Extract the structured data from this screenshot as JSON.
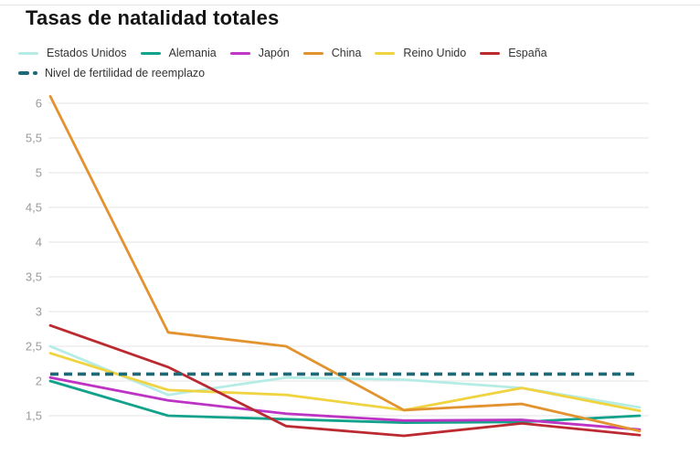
{
  "title": "Tasas de natalidad totales",
  "colors": {
    "background": "#ffffff",
    "grid": "#eaeaea",
    "tick_label": "#9b9b9b",
    "title_text": "#141414",
    "legend_text": "#333333"
  },
  "legend": {
    "series": [
      {
        "label": "Estados Unidos",
        "color": "#b5ece6"
      },
      {
        "label": "Alemania",
        "color": "#12a28b"
      },
      {
        "label": "Japón",
        "color": "#c136c9"
      },
      {
        "label": "China",
        "color": "#e2932f"
      },
      {
        "label": "Reino Unido",
        "color": "#efd341"
      },
      {
        "label": "España",
        "color": "#bb2a31"
      }
    ],
    "reference": {
      "label": "Nivel de fertilidad de reemplazo",
      "color": "#1d6a76",
      "style": "dashed"
    }
  },
  "chart_data": {
    "type": "line",
    "title": "Tasas de natalidad totales",
    "x": [
      1,
      2,
      3,
      4,
      5,
      6
    ],
    "x_tick_labels_visible": false,
    "y_ticks": [
      "6",
      "5,5",
      "5",
      "4,5",
      "4",
      "3,5",
      "3",
      "2,5",
      "2",
      "1,5"
    ],
    "y_tick_values": [
      6,
      5.5,
      5,
      4.5,
      4,
      3.5,
      3,
      2.5,
      2,
      1.5
    ],
    "ylim_visible": [
      0.95,
      6.35
    ],
    "grid": "horizontal",
    "legend_position": "top",
    "series": [
      {
        "name": "Estados Unidos",
        "color": "#b5ece6",
        "values": [
          2.5,
          1.8,
          2.05,
          2.02,
          1.9,
          1.62
        ]
      },
      {
        "name": "Reino Unido",
        "color": "#efd341",
        "values": [
          2.4,
          1.87,
          1.8,
          1.58,
          1.9,
          1.57
        ]
      },
      {
        "name": "Alemania",
        "color": "#12a28b",
        "values": [
          2.0,
          1.5,
          1.45,
          1.4,
          1.41,
          1.5
        ]
      },
      {
        "name": "Japón",
        "color": "#bd34c4",
        "values": [
          2.05,
          1.72,
          1.53,
          1.43,
          1.44,
          1.3
        ]
      },
      {
        "name": "China",
        "color": "#e2932f",
        "values": [
          6.1,
          2.7,
          2.5,
          1.58,
          1.67,
          1.28
        ]
      },
      {
        "name": "España",
        "color": "#bb2a31",
        "values": [
          2.8,
          2.2,
          1.35,
          1.21,
          1.39,
          1.22
        ]
      }
    ],
    "reference_line": {
      "name": "Nivel de fertilidad de reemplazo",
      "value": 2.1,
      "style": "dashed",
      "color": "#1d6a76"
    }
  }
}
